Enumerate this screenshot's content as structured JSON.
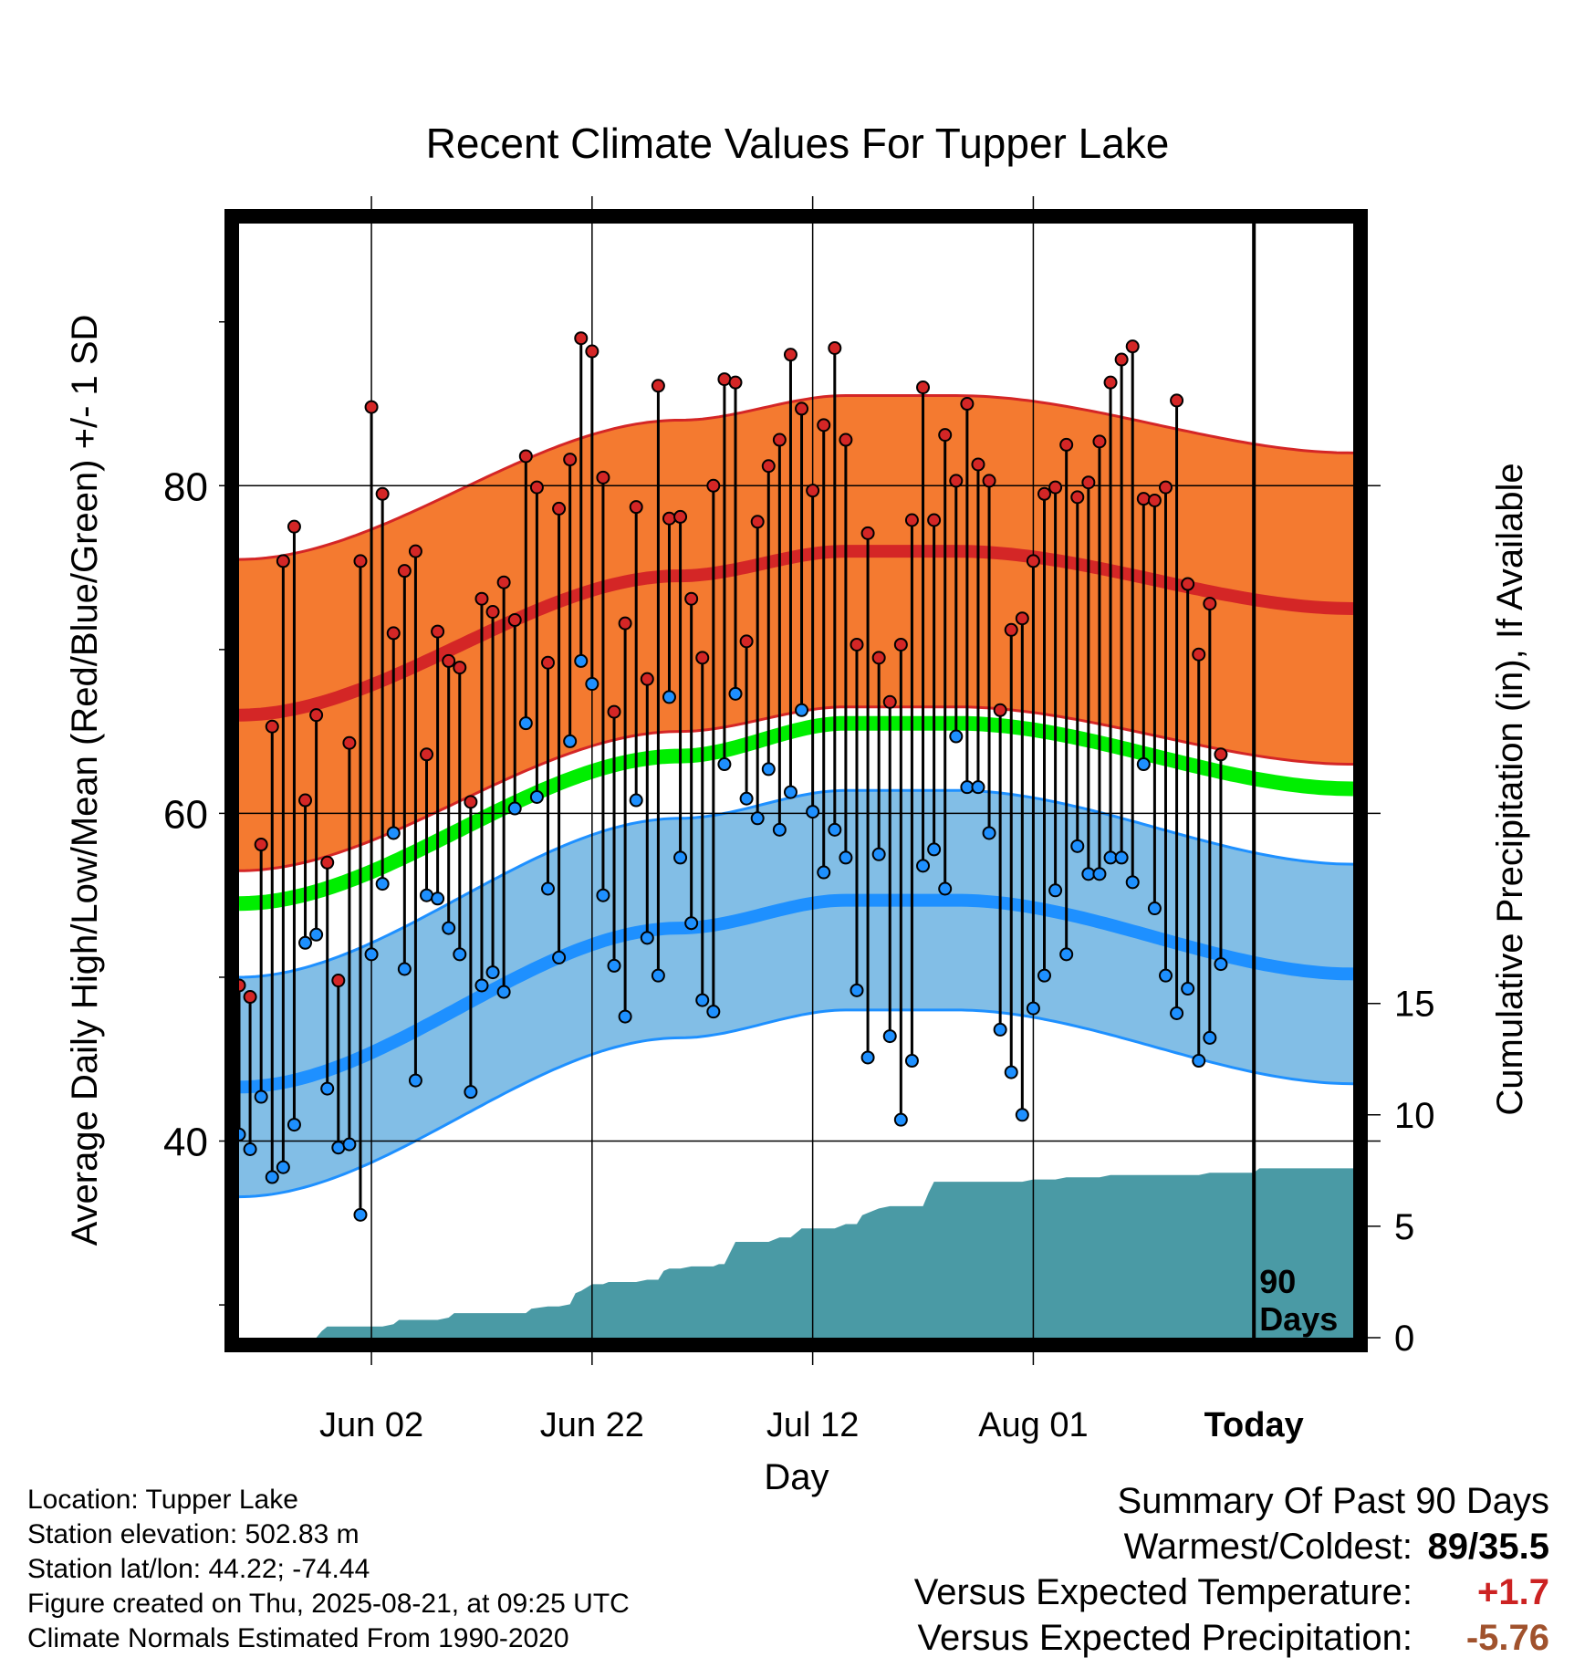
{
  "title": "Recent Climate Values For Tupper Lake",
  "chart_data": {
    "type": "line",
    "title": "Recent Climate Values For Tupper Lake",
    "xlabel": "Day",
    "ylabel_left": "Average Daily High/Low/Mean (Red/Blue/Green) +/- 1 SD",
    "ylabel_right": "Cumulative Precipitation (in), If Available",
    "x_ticks": [
      "Jun 02",
      "Jun 22",
      "Jul 12",
      "Aug 01",
      "Today"
    ],
    "x_tick_days": [
      12,
      32,
      52,
      72,
      92
    ],
    "x_range_days": [
      0,
      101
    ],
    "left_ylim": [
      28,
      96
    ],
    "left_ticks": [
      40,
      60,
      80
    ],
    "right_ticks": [
      0,
      5,
      10,
      15
    ],
    "right_ylim": [
      0,
      50
    ],
    "today_marker": {
      "day": 92,
      "label_line1": "90",
      "label_line2": "Days"
    },
    "colors": {
      "high_band": "#f47a30",
      "high_mean": "#d42626",
      "low_band": "#82bee6",
      "low_mean": "#1e90ff",
      "mean_normal": "#00ee00",
      "precip": "#4a9aa5"
    },
    "normal_high_mean": {
      "days": [
        0,
        40,
        55,
        65,
        101
      ],
      "values": [
        66,
        74.5,
        76,
        76,
        72.5
      ]
    },
    "normal_high_sd": 9.5,
    "normal_low_mean": {
      "days": [
        0,
        40,
        55,
        65,
        101
      ],
      "values": [
        43.3,
        53,
        54.7,
        54.7,
        50.2
      ]
    },
    "normal_low_sd": 6.7,
    "normal_mean": {
      "days": [
        0,
        40,
        55,
        65,
        101
      ],
      "values": [
        54.5,
        63.5,
        65.5,
        65.5,
        61.5
      ]
    },
    "days": [
      0,
      1,
      2,
      3,
      4,
      5,
      6,
      7,
      8,
      9,
      10,
      11,
      12,
      13,
      14,
      15,
      16,
      17,
      18,
      19,
      20,
      21,
      22,
      23,
      24,
      25,
      26,
      27,
      28,
      29,
      30,
      31,
      32,
      33,
      34,
      35,
      36,
      37,
      38,
      39,
      40,
      41,
      42,
      43,
      44,
      45,
      46,
      47,
      48,
      49,
      50,
      51,
      52,
      53,
      54,
      55,
      56,
      57,
      58,
      59,
      60,
      61,
      62,
      63,
      64,
      65,
      66,
      67,
      68,
      69,
      70,
      71,
      72,
      73,
      74,
      75,
      76,
      77,
      78,
      79,
      80,
      81,
      82,
      83,
      84,
      85,
      86,
      87,
      88,
      89
    ],
    "highs": [
      49.5,
      48.8,
      58.1,
      65.3,
      75.4,
      77.5,
      60.8,
      66.0,
      57.0,
      49.8,
      64.3,
      75.4,
      84.8,
      79.5,
      71.0,
      74.8,
      76.0,
      63.6,
      71.1,
      69.3,
      68.9,
      60.7,
      73.1,
      72.3,
      74.1,
      71.8,
      81.8,
      79.9,
      69.2,
      78.6,
      81.6,
      89.0,
      88.2,
      80.5,
      66.2,
      71.6,
      78.7,
      68.2,
      86.1,
      78.0,
      78.1,
      73.1,
      69.5,
      80.0,
      86.5,
      86.3,
      70.5,
      77.8,
      81.2,
      82.8,
      88.0,
      84.7,
      79.7,
      83.7,
      88.4,
      82.8,
      70.3,
      77.1,
      69.5,
      66.8,
      70.3,
      77.9,
      86.0,
      77.9,
      83.1,
      80.3,
      85.0,
      81.3,
      80.3,
      66.3,
      71.2,
      71.9,
      75.4,
      79.5,
      79.9,
      82.5,
      79.3,
      80.2,
      82.7,
      86.3,
      87.7,
      88.5,
      79.2,
      79.1,
      79.9,
      85.2,
      74.0,
      69.7,
      72.8,
      63.6
    ],
    "lows": [
      40.4,
      39.5,
      42.7,
      37.8,
      38.4,
      41.0,
      52.1,
      52.6,
      43.2,
      39.6,
      39.8,
      35.5,
      51.4,
      55.7,
      58.8,
      50.5,
      43.7,
      55.0,
      54.8,
      53.0,
      51.4,
      43.0,
      49.5,
      50.3,
      49.1,
      60.3,
      65.5,
      61.0,
      55.4,
      51.2,
      64.4,
      69.3,
      67.9,
      55.0,
      50.7,
      47.6,
      60.8,
      52.4,
      50.1,
      67.1,
      57.3,
      53.3,
      48.6,
      47.9,
      63.0,
      67.3,
      60.9,
      59.7,
      62.7,
      59.0,
      61.3,
      66.3,
      60.1,
      56.4,
      59.0,
      57.3,
      49.2,
      45.1,
      57.5,
      46.4,
      41.3,
      44.9,
      56.8,
      57.8,
      55.4,
      64.7,
      61.6,
      61.6,
      58.8,
      46.8,
      44.2,
      41.6,
      48.1,
      50.1,
      55.3,
      51.4,
      58.0,
      56.3,
      56.3,
      57.3,
      57.3,
      55.8,
      63.0,
      54.2,
      50.1,
      47.8,
      49.3,
      44.9,
      46.3,
      50.8
    ],
    "precip_cumulative": {
      "days": [
        0,
        7,
        7.5,
        8,
        9,
        12,
        13,
        14,
        14.5,
        17,
        18,
        19,
        19.5,
        22,
        23,
        24,
        25,
        26,
        26.5,
        28,
        29,
        30,
        30.5,
        31,
        32,
        33,
        33.5,
        34,
        35,
        36,
        37,
        38,
        38.5,
        39,
        40,
        41,
        42,
        43,
        43.5,
        44,
        45,
        46,
        46.5,
        47,
        48,
        49,
        50,
        51,
        52,
        53,
        54,
        55,
        56,
        56.5,
        57,
        58,
        59,
        60,
        61,
        62,
        62.5,
        63,
        64,
        65,
        66,
        67,
        68,
        69,
        70,
        71,
        72,
        73,
        74,
        75,
        76,
        77,
        78,
        79,
        80,
        81,
        82,
        83,
        84,
        85,
        86,
        87,
        88,
        89,
        90,
        91,
        92,
        92.5,
        101
      ],
      "values": [
        0,
        0,
        0.3,
        0.5,
        0.5,
        0.5,
        0.5,
        0.6,
        0.8,
        0.8,
        0.8,
        0.9,
        1.1,
        1.1,
        1.1,
        1.1,
        1.1,
        1.1,
        1.3,
        1.4,
        1.4,
        1.5,
        2.0,
        2.1,
        2.4,
        2.4,
        2.5,
        2.5,
        2.5,
        2.5,
        2.6,
        2.6,
        3.0,
        3.1,
        3.1,
        3.2,
        3.2,
        3.2,
        3.3,
        3.3,
        4.3,
        4.3,
        4.3,
        4.3,
        4.3,
        4.5,
        4.5,
        4.9,
        4.9,
        4.9,
        4.9,
        5.1,
        5.1,
        5.5,
        5.6,
        5.8,
        5.9,
        5.9,
        5.9,
        5.9,
        6.5,
        7.0,
        7.0,
        7.0,
        7.0,
        7.0,
        7.0,
        7.0,
        7.0,
        7.0,
        7.1,
        7.1,
        7.1,
        7.2,
        7.2,
        7.2,
        7.2,
        7.3,
        7.3,
        7.3,
        7.3,
        7.3,
        7.3,
        7.3,
        7.3,
        7.3,
        7.4,
        7.4,
        7.4,
        7.4,
        7.4,
        7.6,
        7.6
      ]
    }
  },
  "info": {
    "location": "Location: Tupper Lake",
    "elevation": "Station elevation: 502.83 m",
    "latlon": "Station lat/lon: 44.22; -74.44",
    "created": "Figure created on Thu, 2025-08-21, at 09:25 UTC",
    "normals": "Climate Normals Estimated From 1990-2020"
  },
  "summary": {
    "heading": "Summary Of Past 90 Days",
    "warmest_label": "Warmest/Coldest:",
    "warmest_value": "89/35.5",
    "temp_label": "Versus Expected Temperature:",
    "temp_value": "+1.7",
    "temp_color": "#cc2222",
    "precip_label": "Versus Expected Precipitation:",
    "precip_value": "-5.76",
    "precip_color": "#a0522d"
  }
}
